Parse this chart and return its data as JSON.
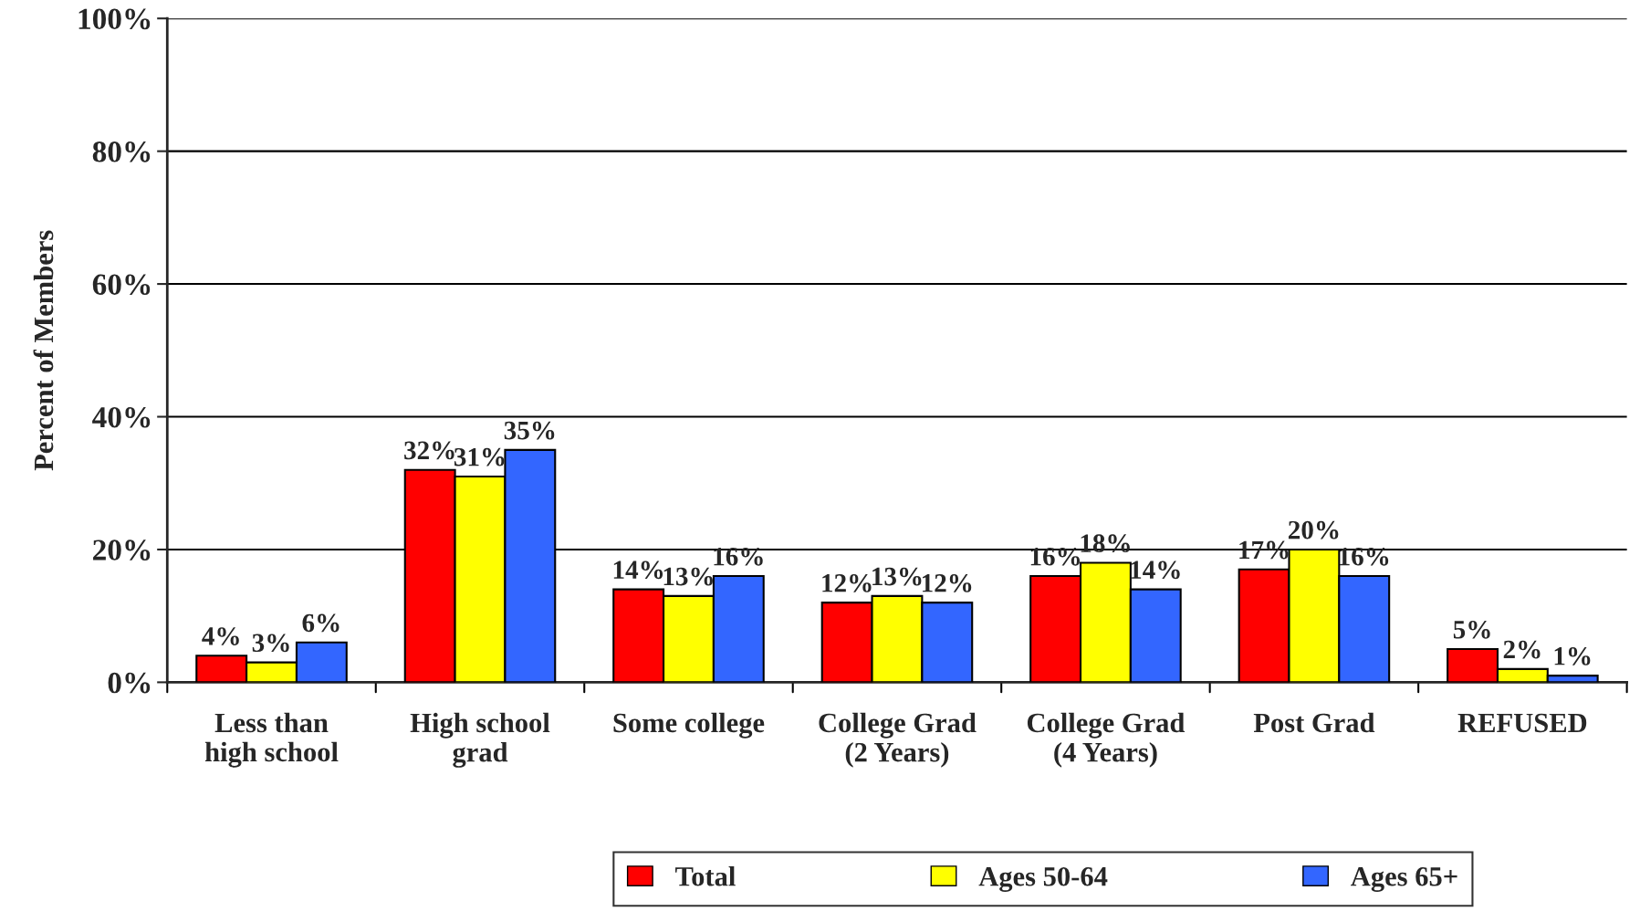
{
  "chart_data": {
    "type": "bar",
    "ylabel": "Percent of Members",
    "categories": [
      "Less than\nhigh school",
      "High school\ngrad",
      "Some college",
      "College Grad\n(2 Years)",
      "College Grad\n(4 Years)",
      "Post Grad",
      "REFUSED"
    ],
    "series": [
      {
        "name": "Total",
        "color": "#ff0000",
        "values": [
          4,
          32,
          14,
          12,
          16,
          17,
          5
        ],
        "value_labels": [
          "4%",
          "32%",
          "14%",
          "12%",
          "16%",
          "17%",
          "5%"
        ]
      },
      {
        "name": "Ages 50-64",
        "color": "#ffff00",
        "values": [
          3,
          31,
          13,
          13,
          18,
          20,
          2
        ],
        "value_labels": [
          "3%",
          "31%",
          "13%",
          "13%",
          "18%",
          "20%",
          "2%"
        ]
      },
      {
        "name": "Ages 65+",
        "color": "#3366ff",
        "values": [
          6,
          35,
          16,
          12,
          14,
          16,
          1
        ],
        "value_labels": [
          "6%",
          "35%",
          "16%",
          "12%",
          "14%",
          "16%",
          "1%"
        ]
      }
    ],
    "ylim": [
      0,
      100
    ],
    "yticks": [
      {
        "value": 0,
        "label": "0%"
      },
      {
        "value": 20,
        "label": "20%"
      },
      {
        "value": 40,
        "label": "40%"
      },
      {
        "value": 60,
        "label": "60%"
      },
      {
        "value": 80,
        "label": "80%"
      },
      {
        "value": 100,
        "label": "100%"
      }
    ],
    "grid": "y",
    "legend": "bottom"
  }
}
